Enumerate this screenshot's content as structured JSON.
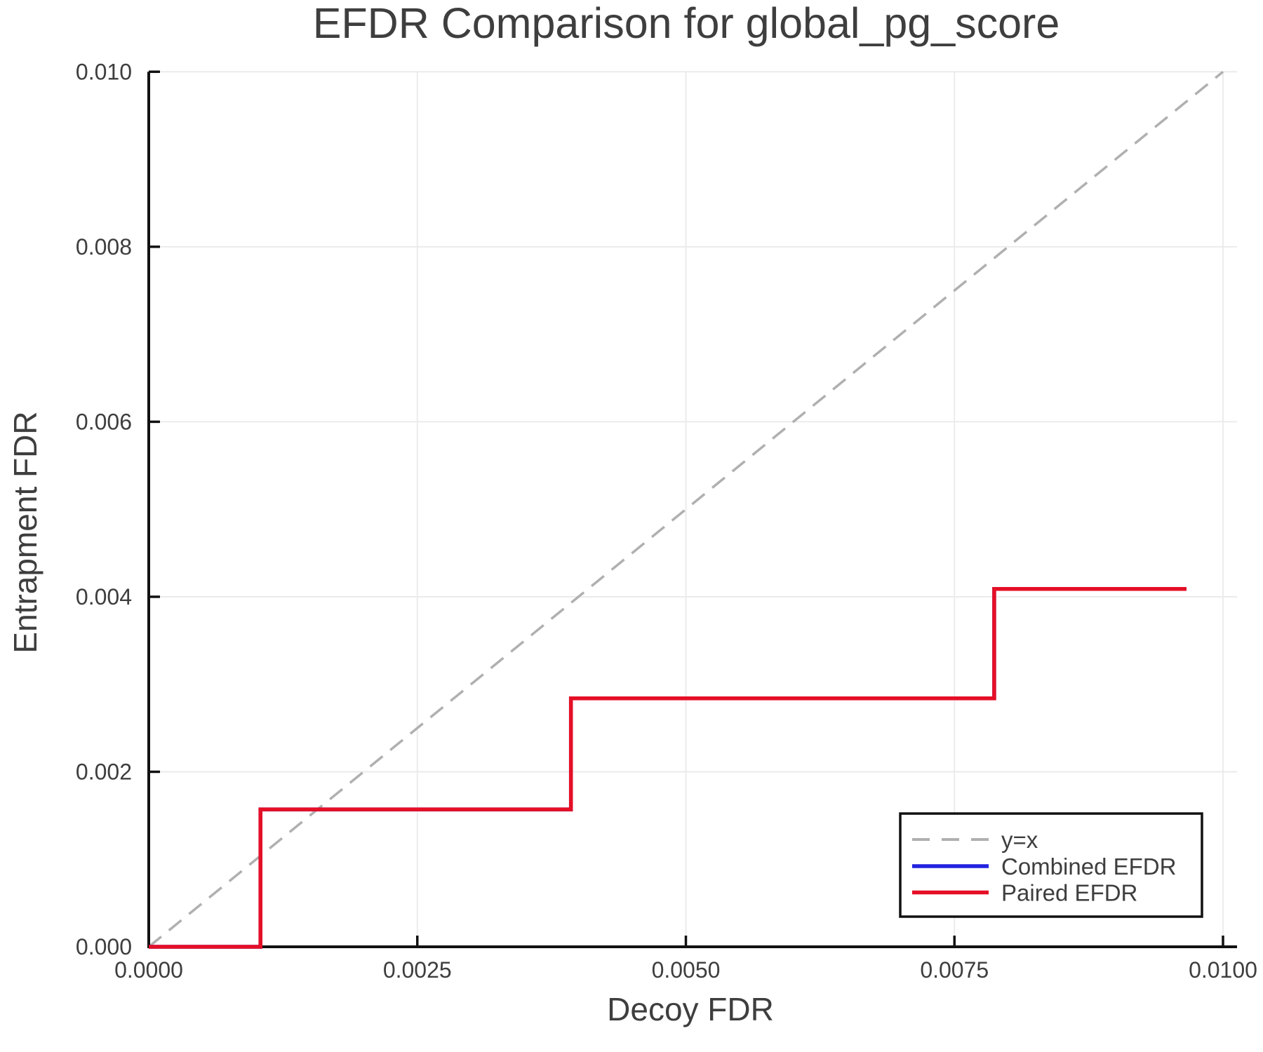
{
  "chart_data": {
    "type": "line",
    "title": "EFDR Comparison for global_pg_score",
    "xlabel": "Decoy FDR",
    "ylabel": "Entrapment FDR",
    "xlim": [
      0,
      0.010132
    ],
    "ylim": [
      0,
      0.01
    ],
    "grid": true,
    "legend_position": "lower right",
    "x_ticks": [
      0.0,
      0.0025,
      0.005,
      0.0075,
      0.01
    ],
    "x_tick_labels": [
      "0.0000",
      "0.0025",
      "0.0050",
      "0.0075",
      "0.0100"
    ],
    "y_ticks": [
      0.0,
      0.002,
      0.004,
      0.006,
      0.008,
      0.01
    ],
    "y_tick_labels": [
      "0.000",
      "0.002",
      "0.004",
      "0.006",
      "0.008",
      "0.010"
    ],
    "series": [
      {
        "name": "y=x",
        "style": "dashed",
        "color": "#b0b0b0",
        "points": [
          [
            0,
            0
          ],
          [
            0.01,
            0.01
          ]
        ]
      },
      {
        "name": "Combined EFDR",
        "style": "solid",
        "color": "#2222e0",
        "points": [
          [
            0,
            0
          ],
          [
            0.00104,
            0
          ],
          [
            0.00104,
            0.00157
          ],
          [
            0.00393,
            0.00157
          ],
          [
            0.00393,
            0.00284
          ],
          [
            0.00787,
            0.00284
          ],
          [
            0.00787,
            0.00409
          ],
          [
            0.00966,
            0.00409
          ]
        ]
      },
      {
        "name": "Paired EFDR",
        "style": "solid",
        "color": "#e50f26",
        "points": [
          [
            0,
            0
          ],
          [
            0.00104,
            0
          ],
          [
            0.00104,
            0.00157
          ],
          [
            0.00393,
            0.00157
          ],
          [
            0.00393,
            0.00284
          ],
          [
            0.00787,
            0.00284
          ],
          [
            0.00787,
            0.00409
          ],
          [
            0.00966,
            0.00409
          ]
        ]
      }
    ],
    "colors": {
      "text": "#3e3e3e",
      "axis": "#111111",
      "grid": "#eaeaea"
    }
  }
}
